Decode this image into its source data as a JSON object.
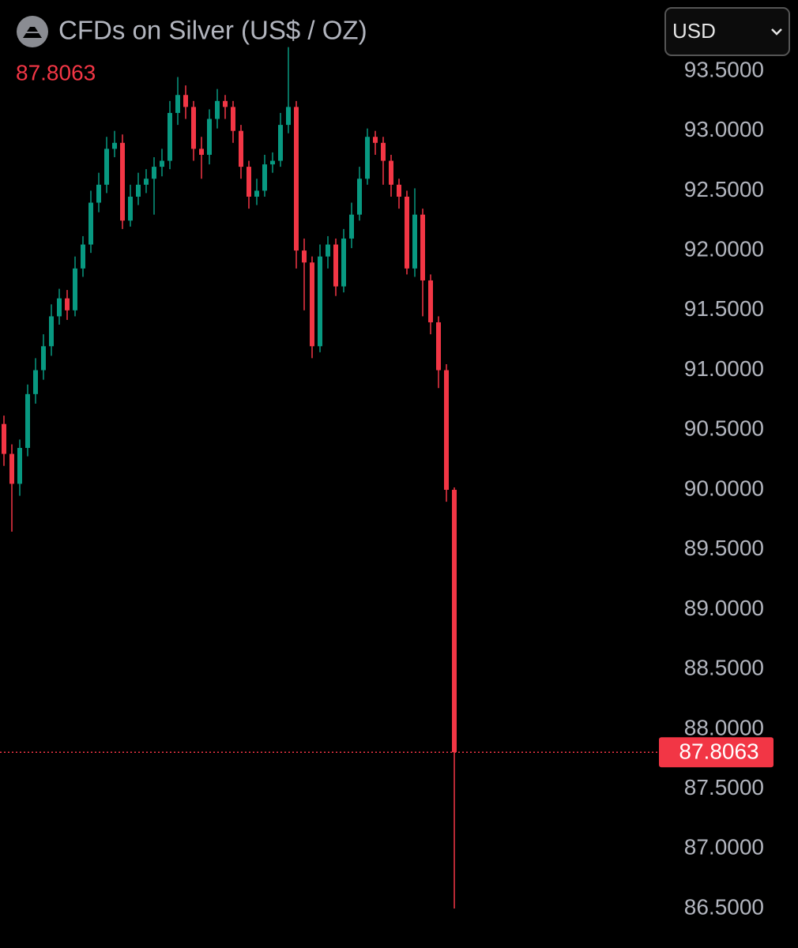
{
  "chart_data": {
    "type": "candlestick",
    "title": "CFDs on Silver (US$ / OZ)",
    "currency": "USD",
    "up_color": "#089981",
    "down_color": "#f23645",
    "ylim": [
      86.17,
      94.094
    ],
    "yticks": [
      {
        "value": 86.5,
        "label": "86.5000"
      },
      {
        "value": 87,
        "label": "87.0000"
      },
      {
        "value": 87.5,
        "label": "87.5000"
      },
      {
        "value": 88,
        "label": "88.0000"
      },
      {
        "value": 88.5,
        "label": "88.5000"
      },
      {
        "value": 89,
        "label": "89.0000"
      },
      {
        "value": 89.5,
        "label": "89.5000"
      },
      {
        "value": 90,
        "label": "90.0000"
      },
      {
        "value": 90.5,
        "label": "90.5000"
      },
      {
        "value": 91,
        "label": "91.0000"
      },
      {
        "value": 91.5,
        "label": "91.5000"
      },
      {
        "value": 92,
        "label": "92.0000"
      },
      {
        "value": 92.5,
        "label": "92.5000"
      },
      {
        "value": 93,
        "label": "93.0000"
      },
      {
        "value": 93.5,
        "label": "93.5000"
      }
    ],
    "open": [
      90.55,
      90.3,
      90.05,
      90.35,
      90.8,
      91.0,
      91.2,
      91.45,
      91.6,
      91.5,
      91.85,
      92.05,
      92.4,
      92.55,
      92.85,
      92.9,
      92.25,
      92.45,
      92.55,
      92.6,
      92.7,
      92.75,
      93.15,
      93.3,
      93.2,
      92.85,
      92.8,
      93.1,
      93.25,
      93.2,
      93.0,
      92.7,
      92.45,
      92.5,
      92.72,
      92.75,
      93.05,
      93.2,
      92.0,
      91.9,
      91.2,
      91.95,
      92.05,
      91.7,
      92.1,
      92.3,
      92.6,
      92.95,
      92.9,
      92.75,
      92.55,
      92.45,
      91.85,
      92.3,
      91.75,
      91.4,
      91.0,
      90.0
    ],
    "high": [
      90.62,
      90.38,
      90.42,
      90.88,
      91.1,
      91.3,
      91.55,
      91.68,
      91.67,
      91.95,
      92.12,
      92.5,
      92.65,
      92.95,
      93.0,
      92.97,
      92.55,
      92.65,
      92.68,
      92.78,
      92.85,
      93.25,
      93.45,
      93.38,
      93.25,
      92.95,
      93.18,
      93.35,
      93.3,
      93.25,
      93.05,
      92.75,
      92.6,
      92.8,
      92.82,
      93.15,
      93.7,
      93.25,
      92.1,
      91.95,
      92.05,
      92.12,
      92.1,
      92.18,
      92.4,
      92.7,
      93.02,
      93.0,
      92.95,
      92.8,
      92.6,
      92.5,
      92.52,
      92.35,
      91.8,
      91.45,
      91.05,
      90.02
    ],
    "low": [
      90.2,
      89.65,
      89.95,
      90.28,
      90.72,
      90.92,
      91.12,
      91.38,
      91.42,
      91.45,
      91.78,
      91.98,
      92.32,
      92.48,
      92.78,
      92.18,
      92.2,
      92.38,
      92.48,
      92.3,
      92.62,
      92.68,
      93.05,
      93.1,
      92.75,
      92.6,
      92.72,
      93.02,
      93.1,
      92.9,
      92.6,
      92.35,
      92.38,
      92.45,
      92.65,
      92.7,
      92.98,
      91.85,
      91.5,
      91.1,
      91.15,
      91.85,
      91.62,
      91.65,
      92.02,
      92.25,
      92.55,
      92.8,
      92.55,
      92.45,
      92.35,
      91.8,
      91.78,
      91.45,
      91.3,
      90.85,
      89.9,
      86.5
    ],
    "close": [
      90.3,
      90.05,
      90.35,
      90.8,
      91.0,
      91.2,
      91.45,
      91.6,
      91.5,
      91.85,
      92.05,
      92.4,
      92.55,
      92.85,
      92.9,
      92.25,
      92.45,
      92.55,
      92.6,
      92.7,
      92.75,
      93.15,
      93.3,
      93.2,
      92.85,
      92.8,
      93.1,
      93.25,
      93.2,
      93.0,
      92.7,
      92.45,
      92.5,
      92.72,
      92.75,
      93.05,
      93.2,
      92.0,
      91.9,
      91.2,
      91.95,
      92.05,
      91.7,
      92.1,
      92.3,
      92.6,
      92.95,
      92.9,
      92.75,
      92.55,
      92.45,
      91.85,
      92.3,
      91.75,
      91.4,
      91.0,
      90.0,
      87.8063
    ]
  }
}
